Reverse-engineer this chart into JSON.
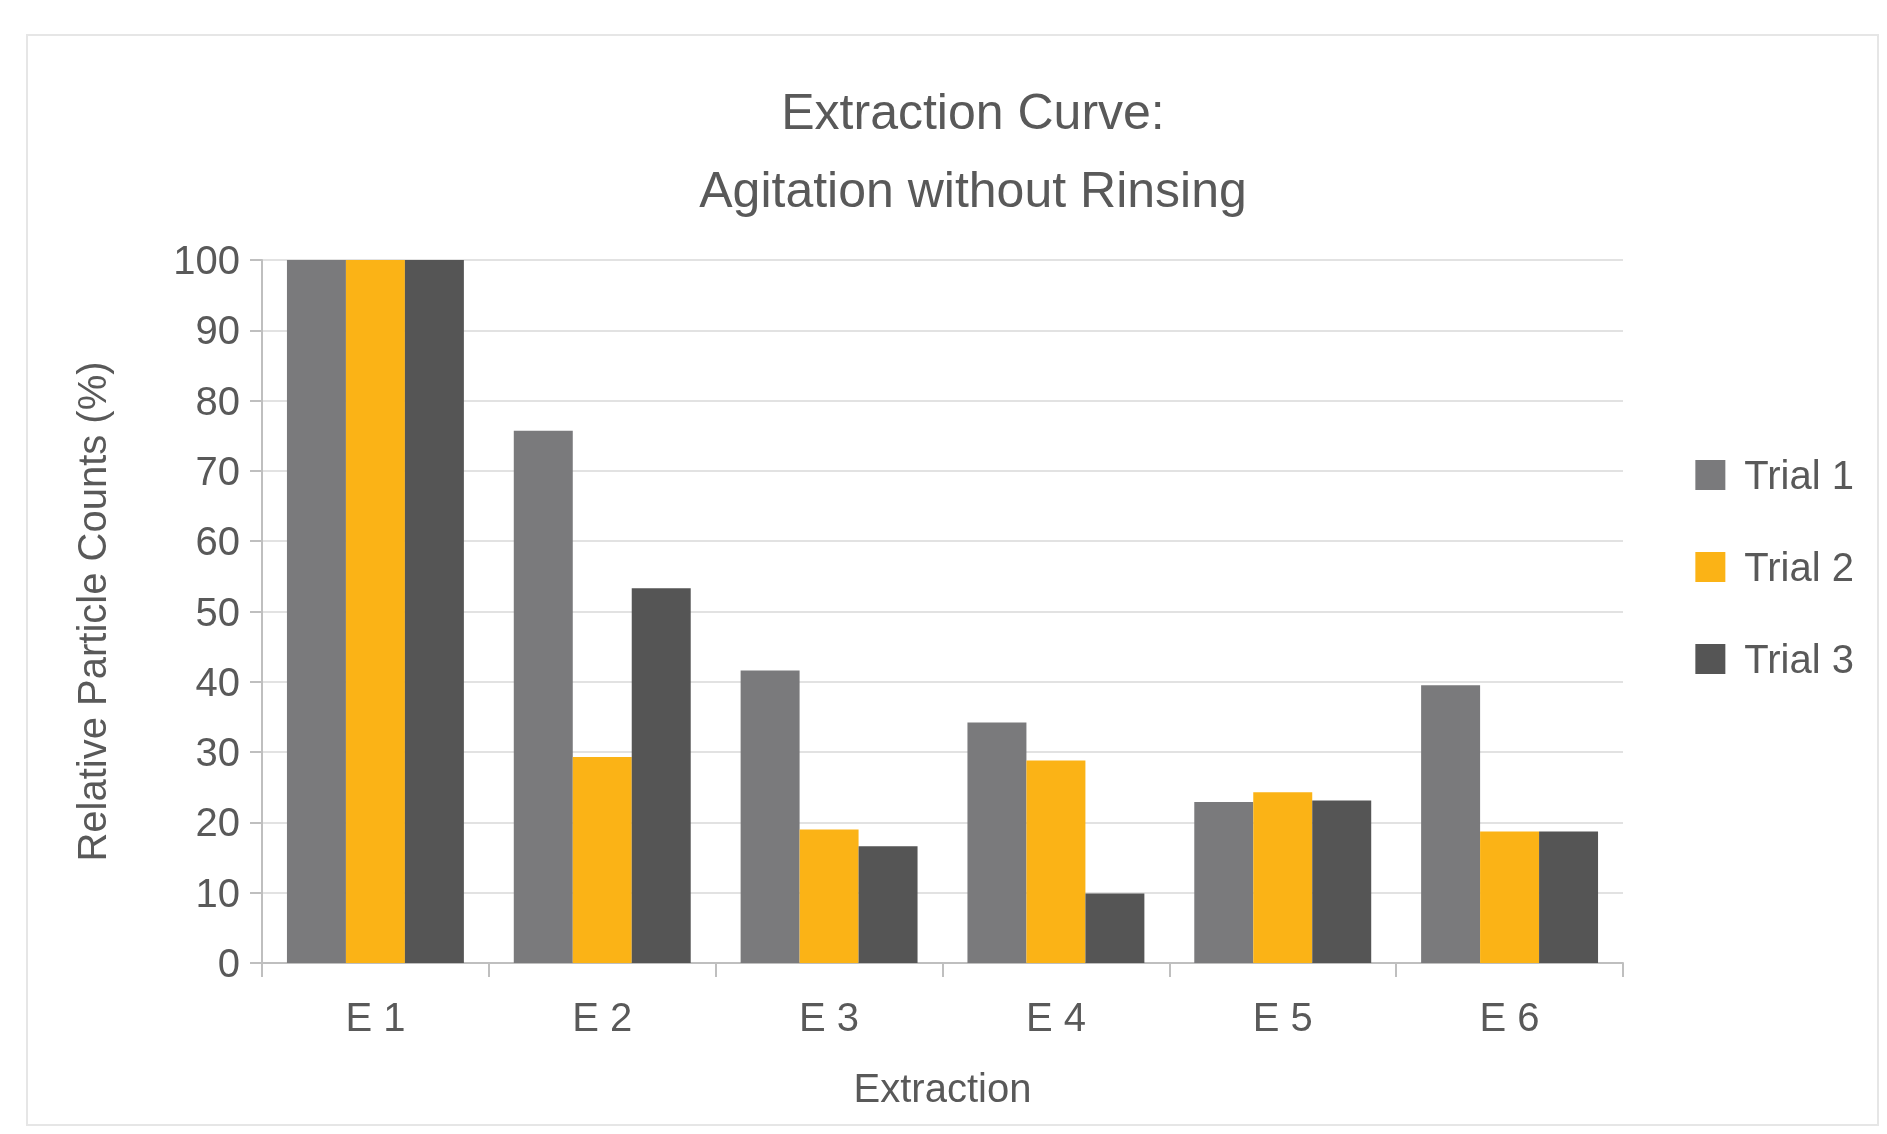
{
  "chart_data": {
    "type": "bar",
    "title": "Extraction Curve:\nAgitation without Rinsing",
    "xlabel": "Extraction",
    "ylabel": "Relative Particle Counts (%)",
    "categories": [
      "E 1",
      "E 2",
      "E 3",
      "E 4",
      "E 5",
      "E 6"
    ],
    "series": [
      {
        "name": "Trial 1",
        "color": "#7a7a7c",
        "values": [
          100,
          75.7,
          41.6,
          34.2,
          22.9,
          39.5
        ]
      },
      {
        "name": "Trial 2",
        "color": "#fbb316",
        "values": [
          100,
          29.3,
          19.0,
          28.8,
          24.3,
          18.7
        ]
      },
      {
        "name": "Trial 3",
        "color": "#555555",
        "values": [
          100,
          53.3,
          16.6,
          9.9,
          23.1,
          18.7
        ]
      }
    ],
    "ylim": [
      0,
      100
    ],
    "yticks": [
      0,
      10,
      20,
      30,
      40,
      50,
      60,
      70,
      80,
      90,
      100
    ],
    "grid": "y",
    "legend": "right"
  }
}
